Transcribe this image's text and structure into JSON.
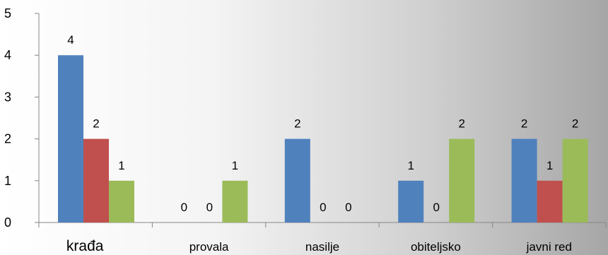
{
  "chart_data": {
    "type": "bar",
    "categories": [
      "krađa",
      "provala",
      "nasilje",
      "obiteljsko",
      "javni red"
    ],
    "series": [
      {
        "values": [
          4,
          0,
          2,
          1,
          2
        ],
        "color": "#4f81bd"
      },
      {
        "values": [
          2,
          0,
          0,
          0,
          1
        ],
        "color": "#c0504d"
      },
      {
        "values": [
          1,
          1,
          0,
          2,
          2
        ],
        "color": "#9bbb59"
      }
    ],
    "title": "",
    "xlabel": "",
    "ylabel": "",
    "ylim": [
      0,
      5
    ],
    "yticks": [
      0,
      1,
      2,
      3,
      4,
      5
    ],
    "grid": false,
    "legend": "none",
    "data_labels": true
  }
}
